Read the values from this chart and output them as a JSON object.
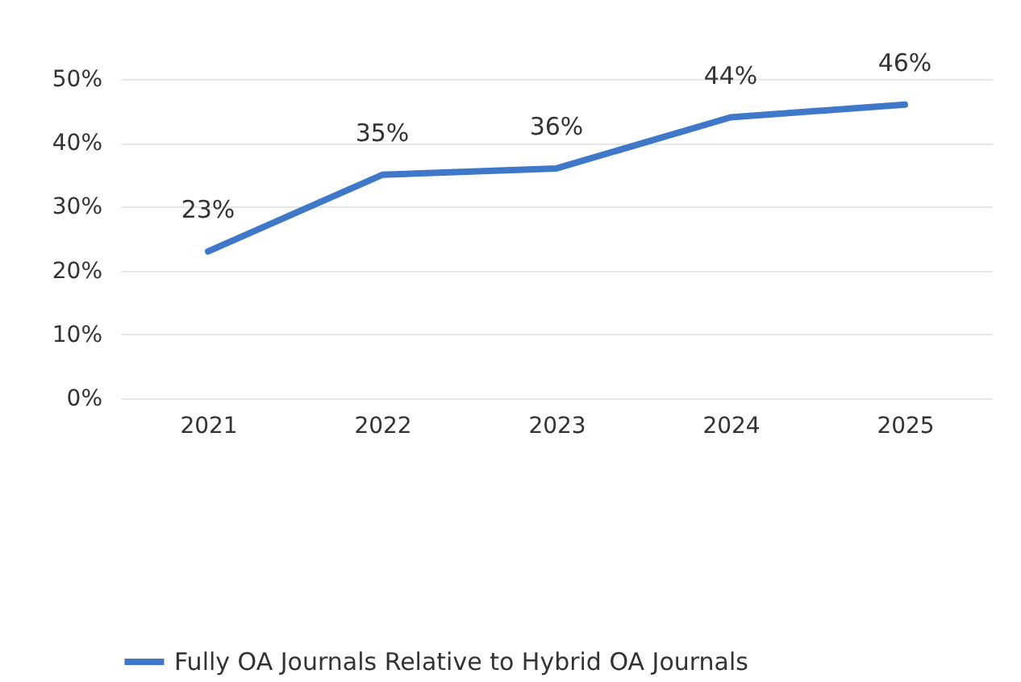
{
  "chart_data": {
    "type": "line",
    "categories": [
      "2021",
      "2022",
      "2023",
      "2024",
      "2025"
    ],
    "series": [
      {
        "name": "Fully OA Journals Relative to Hybrid OA Journals",
        "color": "#3f78c8",
        "values": [
          23,
          35,
          36,
          44,
          46
        ],
        "value_labels": [
          "23%",
          "35%",
          "36%",
          "44%",
          "46%"
        ]
      }
    ],
    "ylim": [
      0,
      50
    ],
    "yticks": [
      {
        "value": 0,
        "label": "0%"
      },
      {
        "value": 10,
        "label": "10%"
      },
      {
        "value": 20,
        "label": "20%"
      },
      {
        "value": 30,
        "label": "30%"
      },
      {
        "value": 40,
        "label": "40%"
      },
      {
        "value": 50,
        "label": "50%"
      }
    ],
    "grid": "y",
    "legend": "bottom",
    "marker": "none",
    "line_style": "solid"
  }
}
